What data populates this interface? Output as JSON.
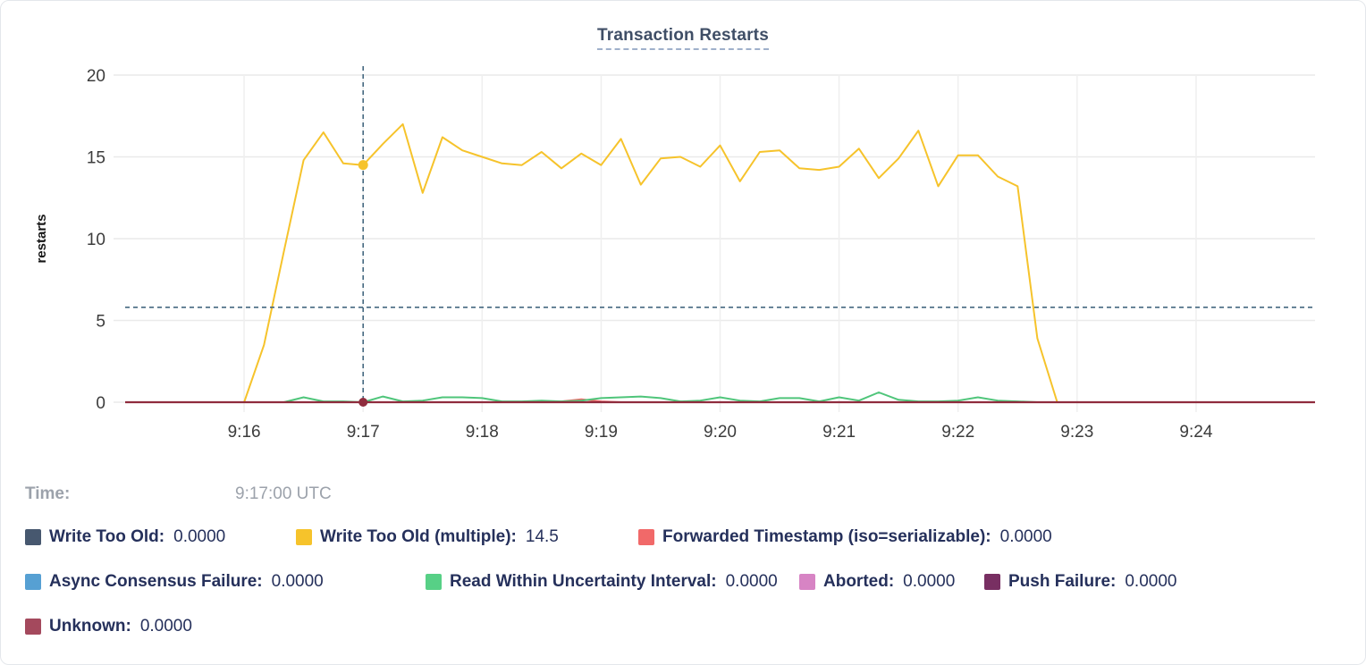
{
  "chart_data": {
    "type": "line",
    "title": "Transaction Restarts",
    "ylabel": "restarts",
    "ylim": [
      0,
      20
    ],
    "y_ticks": [
      0,
      5,
      10,
      15,
      20
    ],
    "x_start": "9:15:00",
    "x_end": "9:25:00",
    "x_step_seconds": 10,
    "x_ticks": [
      "9:16",
      "9:17",
      "9:18",
      "9:19",
      "9:20",
      "9:21",
      "9:22",
      "9:23",
      "9:24"
    ],
    "grid": true,
    "legend_position": "bottom",
    "hover": {
      "x_time": "9:17:00",
      "series": "Write Too Old (multiple)",
      "value": 14.5,
      "crosshair_y_value": 5.8
    },
    "series": [
      {
        "name": "Write Too Old",
        "color": "#47586F",
        "constant": 0
      },
      {
        "name": "Write Too Old (multiple)",
        "color": "#F6C32B",
        "values": [
          0,
          0,
          0,
          0,
          0,
          0,
          0,
          3.5,
          9.2,
          14.8,
          16.5,
          14.6,
          14.5,
          15.8,
          17,
          12.8,
          16.2,
          15.4,
          15,
          14.6,
          14.5,
          15.3,
          14.3,
          15.2,
          14.5,
          16.1,
          13.3,
          14.9,
          15,
          14.4,
          15.7,
          13.5,
          15.3,
          15.4,
          14.3,
          14.2,
          14.4,
          15.5,
          13.7,
          14.9,
          16.6,
          13.2,
          15.1,
          15.1,
          13.8,
          13.2,
          3.9,
          0,
          0,
          0,
          0,
          0,
          0,
          0,
          0,
          0,
          0,
          0,
          0,
          0,
          0
        ]
      },
      {
        "name": "Forwarded Timestamp (iso=serializable)",
        "color": "#F16969",
        "values": [
          0,
          0,
          0,
          0,
          0,
          0,
          0,
          0,
          0,
          0,
          0,
          0,
          0,
          0,
          0,
          0,
          0,
          0,
          0,
          0,
          0,
          0,
          0.05,
          0.18,
          0.05,
          0,
          0,
          0,
          0,
          0,
          0,
          0,
          0,
          0,
          0,
          0,
          0,
          0,
          0,
          0,
          0,
          0,
          0,
          0,
          0,
          0,
          0,
          0,
          0,
          0,
          0,
          0,
          0,
          0,
          0,
          0,
          0,
          0,
          0,
          0,
          0
        ]
      },
      {
        "name": "Async Consensus Failure",
        "color": "#56A0D3",
        "constant": 0
      },
      {
        "name": "Read Within Uncertainty Interval",
        "color": "#57D086",
        "line_color": "#4FC57A",
        "values": [
          0,
          0,
          0,
          0,
          0,
          0,
          0,
          0,
          0,
          0.3,
          0.05,
          0.05,
          0,
          0.35,
          0.05,
          0.1,
          0.3,
          0.3,
          0.25,
          0.05,
          0.05,
          0.1,
          0.05,
          0.1,
          0.25,
          0.3,
          0.35,
          0.25,
          0.05,
          0.1,
          0.3,
          0.1,
          0.05,
          0.25,
          0.25,
          0.05,
          0.3,
          0.1,
          0.6,
          0.15,
          0.05,
          0.05,
          0.1,
          0.3,
          0.1,
          0.05,
          0,
          0,
          0,
          0,
          0,
          0,
          0,
          0,
          0,
          0,
          0,
          0,
          0,
          0,
          0
        ]
      },
      {
        "name": "Aborted",
        "color": "#D784C4",
        "constant": 0
      },
      {
        "name": "Push Failure",
        "color": "#782F62",
        "constant": 0
      },
      {
        "name": "Unknown",
        "color": "#A4495D",
        "line_color": "#8F2C3D",
        "constant": 0
      }
    ]
  },
  "legend": {
    "time_label": "Time:",
    "time_value": "9:17:00 UTC",
    "rows": [
      [
        {
          "label": "Write Too Old:",
          "value": "0.0000",
          "color": "#47586F"
        },
        {
          "label": "Write Too Old (multiple):",
          "value": "14.5",
          "color": "#F6C32B"
        },
        {
          "label": "Forwarded Timestamp (iso=serializable):",
          "value": "0.0000",
          "color": "#F16969"
        }
      ],
      [
        {
          "label": "Async Consensus Failure:",
          "value": "0.0000",
          "color": "#56A0D3"
        },
        {
          "label": "Read Within Uncertainty Interval:",
          "value": "0.0000",
          "color": "#57D086"
        },
        {
          "label": "Aborted:",
          "value": "0.0000",
          "color": "#D784C4"
        },
        {
          "label": "Push Failure:",
          "value": "0.0000",
          "color": "#782F62"
        }
      ],
      [
        {
          "label": "Unknown:",
          "value": "0.0000",
          "color": "#A4495D"
        }
      ]
    ]
  }
}
